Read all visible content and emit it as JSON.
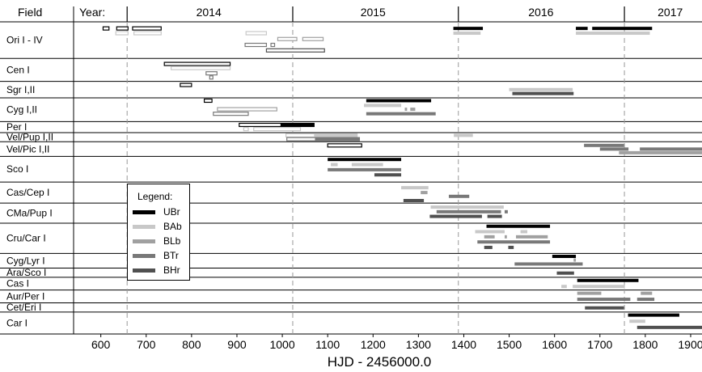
{
  "chart_data": {
    "type": "gantt",
    "field_header": "Field",
    "year_header": "Year:",
    "xlabel": "HJD - 2456000.0",
    "xlim": [
      540,
      1925
    ],
    "xticks": [
      600,
      700,
      800,
      900,
      1000,
      1100,
      1200,
      1300,
      1400,
      1500,
      1600,
      1700,
      1800,
      1900
    ],
    "xtick_labels": [
      "600",
      "700",
      "800",
      "900",
      "1000",
      "1100",
      "1200",
      "1300",
      "1400",
      "1500",
      "1600",
      "1700",
      "1800",
      "1900"
    ],
    "years": [
      {
        "label": "2014",
        "x": 838
      },
      {
        "label": "2015",
        "x": 1200
      },
      {
        "label": "2016",
        "x": 1570
      },
      {
        "label": "2017",
        "x": 1855
      }
    ],
    "year_boundaries": [
      658,
      1023,
      1388,
      1754
    ],
    "rows": [
      {
        "label": "Ori I - IV",
        "h": 4
      },
      {
        "label": "Cen I",
        "h": 2.5
      },
      {
        "label": "Sgr I,II",
        "h": 1.8
      },
      {
        "label": "Cyg I,II",
        "h": 2.6
      },
      {
        "label": "Per I",
        "h": 1.2
      },
      {
        "label": "Vel/Pup I,II",
        "h": 1
      },
      {
        "label": "Vel/Pic I,II",
        "h": 1.6
      },
      {
        "label": "Sco I",
        "h": 2.8
      },
      {
        "label": "Cas/Cep I",
        "h": 2.3
      },
      {
        "label": "CMa/Pup I",
        "h": 2.2
      },
      {
        "label": "Cru/Car I",
        "h": 3.3
      },
      {
        "label": "Cyg/Lyr I",
        "h": 1.6
      },
      {
        "label": "Ara/Sco I",
        "h": 1
      },
      {
        "label": "Cas I",
        "h": 1.4
      },
      {
        "label": "Aur/Per I",
        "h": 1.4
      },
      {
        "label": "Cet/Eri I",
        "h": 1
      },
      {
        "label": "Car I",
        "h": 2.4
      }
    ],
    "legend": {
      "title": "Legend:",
      "items": [
        {
          "name": "UBr",
          "color": "#000000"
        },
        {
          "name": "BAb",
          "color": "#c8c8c8"
        },
        {
          "name": "BLb",
          "color": "#a0a0a0"
        },
        {
          "name": "BTr",
          "color": "#787878"
        },
        {
          "name": "BHr",
          "color": "#505050"
        }
      ]
    },
    "bars": [
      {
        "row": 0,
        "y": 0.18,
        "start": 605,
        "end": 618,
        "sat": "UBr",
        "style": "hollow"
      },
      {
        "row": 0,
        "y": 0.18,
        "start": 635,
        "end": 660,
        "sat": "UBr",
        "style": "hollow"
      },
      {
        "row": 0,
        "y": 0.18,
        "start": 670,
        "end": 733,
        "sat": "UBr",
        "style": "hollow"
      },
      {
        "row": 0,
        "y": 0.18,
        "start": 1377,
        "end": 1442,
        "sat": "UBr",
        "style": "solid"
      },
      {
        "row": 0,
        "y": 0.18,
        "start": 1647,
        "end": 1673,
        "sat": "UBr",
        "style": "solid"
      },
      {
        "row": 0,
        "y": 0.18,
        "start": 1683,
        "end": 1815,
        "sat": "UBr",
        "style": "solid"
      },
      {
        "row": 0,
        "y": 0.31,
        "start": 633,
        "end": 660,
        "sat": "BAb",
        "style": "hollow"
      },
      {
        "row": 0,
        "y": 0.31,
        "start": 673,
        "end": 733,
        "sat": "BAb",
        "style": "hollow"
      },
      {
        "row": 0,
        "y": 0.31,
        "start": 920,
        "end": 965,
        "sat": "BAb",
        "style": "hollow"
      },
      {
        "row": 0,
        "y": 0.31,
        "start": 1377,
        "end": 1437,
        "sat": "BAb",
        "style": "solid"
      },
      {
        "row": 0,
        "y": 0.31,
        "start": 1647,
        "end": 1810,
        "sat": "BAb",
        "style": "solid"
      },
      {
        "row": 0,
        "y": 0.47,
        "start": 990,
        "end": 1032,
        "sat": "BLb",
        "style": "hollow"
      },
      {
        "row": 0,
        "y": 0.47,
        "start": 1045,
        "end": 1090,
        "sat": "BLb",
        "style": "hollow"
      },
      {
        "row": 0,
        "y": 0.63,
        "start": 918,
        "end": 965,
        "sat": "BTr",
        "style": "hollow"
      },
      {
        "row": 0,
        "y": 0.63,
        "start": 975,
        "end": 983,
        "sat": "BTr",
        "style": "hollow"
      },
      {
        "row": 0,
        "y": 0.78,
        "start": 965,
        "end": 1093,
        "sat": "BHr",
        "style": "hollow"
      },
      {
        "row": 1,
        "y": 0.24,
        "start": 740,
        "end": 885,
        "sat": "UBr",
        "style": "hollow"
      },
      {
        "row": 1,
        "y": 0.42,
        "start": 755,
        "end": 885,
        "sat": "BAb",
        "style": "hollow"
      },
      {
        "row": 1,
        "y": 0.65,
        "start": 832,
        "end": 856,
        "sat": "BTr",
        "style": "hollow"
      },
      {
        "row": 1,
        "y": 0.83,
        "start": 840,
        "end": 847,
        "sat": "BTr",
        "style": "hollow"
      },
      {
        "row": 2,
        "y": 0.22,
        "start": 775,
        "end": 800,
        "sat": "UBr",
        "style": "hollow"
      },
      {
        "row": 2,
        "y": 0.5,
        "start": 1500,
        "end": 1640,
        "sat": "BAb",
        "style": "solid"
      },
      {
        "row": 2,
        "y": 0.74,
        "start": 1507,
        "end": 1642,
        "sat": "BHr",
        "style": "solid"
      },
      {
        "row": 3,
        "y": 0.12,
        "start": 828,
        "end": 845,
        "sat": "UBr",
        "style": "hollow"
      },
      {
        "row": 3,
        "y": 0.12,
        "start": 1185,
        "end": 1328,
        "sat": "UBr",
        "style": "solid"
      },
      {
        "row": 3,
        "y": 0.32,
        "start": 1180,
        "end": 1262,
        "sat": "BAb",
        "style": "solid"
      },
      {
        "row": 3,
        "y": 0.48,
        "start": 857,
        "end": 988,
        "sat": "BLb",
        "style": "hollow"
      },
      {
        "row": 3,
        "y": 0.48,
        "start": 1270,
        "end": 1275,
        "sat": "BLb",
        "style": "solid"
      },
      {
        "row": 3,
        "y": 0.48,
        "start": 1282,
        "end": 1293,
        "sat": "BLb",
        "style": "solid"
      },
      {
        "row": 3,
        "y": 0.67,
        "start": 848,
        "end": 925,
        "sat": "BTr",
        "style": "hollow"
      },
      {
        "row": 3,
        "y": 0.67,
        "start": 1185,
        "end": 1338,
        "sat": "BTr",
        "style": "solid"
      },
      {
        "row": 4,
        "y": 0.3,
        "start": 905,
        "end": 1070,
        "sat": "UBr",
        "style": "mixed",
        "solid_from": 996
      },
      {
        "row": 4,
        "y": 0.68,
        "start": 915,
        "end": 925,
        "sat": "BAb",
        "style": "hollow"
      },
      {
        "row": 4,
        "y": 0.68,
        "start": 937,
        "end": 1040,
        "sat": "BAb",
        "style": "hollow"
      },
      {
        "row": 5,
        "y": 0.3,
        "start": 1008,
        "end": 1165,
        "sat": "BAb",
        "style": "mixed",
        "solid_from": 1070
      },
      {
        "row": 5,
        "y": 0.3,
        "start": 1378,
        "end": 1420,
        "sat": "BAb",
        "style": "solid"
      },
      {
        "row": 5,
        "y": 0.72,
        "start": 1010,
        "end": 1170,
        "sat": "BTr",
        "style": "mixed",
        "solid_from": 1072
      },
      {
        "row": 6,
        "y": 0.25,
        "start": 1100,
        "end": 1175,
        "sat": "UBr",
        "style": "hollow"
      },
      {
        "row": 6,
        "y": 0.25,
        "start": 1665,
        "end": 1753,
        "sat": "BTr",
        "style": "solid"
      },
      {
        "row": 6,
        "y": 0.5,
        "start": 1700,
        "end": 1763,
        "sat": "BTr",
        "style": "solid"
      },
      {
        "row": 6,
        "y": 0.5,
        "start": 1788,
        "end": 1925,
        "sat": "BTr",
        "style": "solid"
      },
      {
        "row": 6,
        "y": 0.75,
        "start": 1742,
        "end": 1925,
        "sat": "BLb",
        "style": "solid"
      },
      {
        "row": 7,
        "y": 0.12,
        "start": 1100,
        "end": 1262,
        "sat": "UBr",
        "style": "solid"
      },
      {
        "row": 7,
        "y": 0.32,
        "start": 1107,
        "end": 1122,
        "sat": "BAb",
        "style": "solid"
      },
      {
        "row": 7,
        "y": 0.32,
        "start": 1153,
        "end": 1222,
        "sat": "BAb",
        "style": "solid"
      },
      {
        "row": 7,
        "y": 0.52,
        "start": 1100,
        "end": 1262,
        "sat": "BTr",
        "style": "solid"
      },
      {
        "row": 7,
        "y": 0.72,
        "start": 1203,
        "end": 1262,
        "sat": "BHr",
        "style": "solid"
      },
      {
        "row": 8,
        "y": 0.27,
        "start": 1262,
        "end": 1322,
        "sat": "BAb",
        "style": "solid"
      },
      {
        "row": 8,
        "y": 0.5,
        "start": 1305,
        "end": 1320,
        "sat": "BLb",
        "style": "solid"
      },
      {
        "row": 8,
        "y": 0.68,
        "start": 1367,
        "end": 1412,
        "sat": "BTr",
        "style": "solid"
      },
      {
        "row": 8,
        "y": 0.88,
        "start": 1267,
        "end": 1312,
        "sat": "BHr",
        "style": "solid"
      },
      {
        "row": 9,
        "y": 0.2,
        "start": 1327,
        "end": 1488,
        "sat": "BAb",
        "style": "solid"
      },
      {
        "row": 9,
        "y": 0.43,
        "start": 1340,
        "end": 1482,
        "sat": "BTr",
        "style": "solid"
      },
      {
        "row": 9,
        "y": 0.43,
        "start": 1490,
        "end": 1497,
        "sat": "BTr",
        "style": "solid"
      },
      {
        "row": 9,
        "y": 0.66,
        "start": 1325,
        "end": 1440,
        "sat": "BHr",
        "style": "solid"
      },
      {
        "row": 9,
        "y": 0.66,
        "start": 1452,
        "end": 1484,
        "sat": "BHr",
        "style": "solid"
      },
      {
        "row": 10,
        "y": 0.1,
        "start": 1450,
        "end": 1590,
        "sat": "UBr",
        "style": "solid"
      },
      {
        "row": 10,
        "y": 0.28,
        "start": 1425,
        "end": 1490,
        "sat": "BAb",
        "style": "solid"
      },
      {
        "row": 10,
        "y": 0.28,
        "start": 1525,
        "end": 1540,
        "sat": "BAb",
        "style": "solid"
      },
      {
        "row": 10,
        "y": 0.45,
        "start": 1445,
        "end": 1468,
        "sat": "BLb",
        "style": "solid"
      },
      {
        "row": 10,
        "y": 0.45,
        "start": 1490,
        "end": 1495,
        "sat": "BLb",
        "style": "solid"
      },
      {
        "row": 10,
        "y": 0.45,
        "start": 1515,
        "end": 1585,
        "sat": "BLb",
        "style": "solid"
      },
      {
        "row": 10,
        "y": 0.62,
        "start": 1430,
        "end": 1590,
        "sat": "BTr",
        "style": "solid"
      },
      {
        "row": 10,
        "y": 0.8,
        "start": 1445,
        "end": 1463,
        "sat": "BHr",
        "style": "solid"
      },
      {
        "row": 10,
        "y": 0.8,
        "start": 1498,
        "end": 1510,
        "sat": "BHr",
        "style": "solid"
      },
      {
        "row": 11,
        "y": 0.2,
        "start": 1595,
        "end": 1647,
        "sat": "UBr",
        "style": "solid"
      },
      {
        "row": 11,
        "y": 0.45,
        "start": 1642,
        "end": 1647,
        "sat": "BLb",
        "style": "solid"
      },
      {
        "row": 11,
        "y": 0.72,
        "start": 1512,
        "end": 1662,
        "sat": "BTr",
        "style": "solid"
      },
      {
        "row": 12,
        "y": 0.55,
        "start": 1605,
        "end": 1643,
        "sat": "BHr",
        "style": "solid"
      },
      {
        "row": 13,
        "y": 0.25,
        "start": 1650,
        "end": 1785,
        "sat": "UBr",
        "style": "solid"
      },
      {
        "row": 13,
        "y": 0.72,
        "start": 1615,
        "end": 1627,
        "sat": "BAb",
        "style": "solid"
      },
      {
        "row": 13,
        "y": 0.72,
        "start": 1640,
        "end": 1755,
        "sat": "BAb",
        "style": "solid"
      },
      {
        "row": 14,
        "y": 0.25,
        "start": 1650,
        "end": 1703,
        "sat": "BLb",
        "style": "solid"
      },
      {
        "row": 14,
        "y": 0.25,
        "start": 1790,
        "end": 1815,
        "sat": "BLb",
        "style": "solid"
      },
      {
        "row": 14,
        "y": 0.72,
        "start": 1650,
        "end": 1767,
        "sat": "BTr",
        "style": "solid"
      },
      {
        "row": 14,
        "y": 0.72,
        "start": 1782,
        "end": 1820,
        "sat": "BTr",
        "style": "solid"
      },
      {
        "row": 15,
        "y": 0.55,
        "start": 1667,
        "end": 1753,
        "sat": "BHr",
        "style": "solid"
      },
      {
        "row": 16,
        "y": 0.14,
        "start": 1762,
        "end": 1875,
        "sat": "UBr",
        "style": "solid"
      },
      {
        "row": 16,
        "y": 0.42,
        "start": 1765,
        "end": 1800,
        "sat": "BAb",
        "style": "solid"
      },
      {
        "row": 16,
        "y": 0.7,
        "start": 1782,
        "end": 1925,
        "sat": "BHr",
        "style": "solid"
      }
    ]
  }
}
